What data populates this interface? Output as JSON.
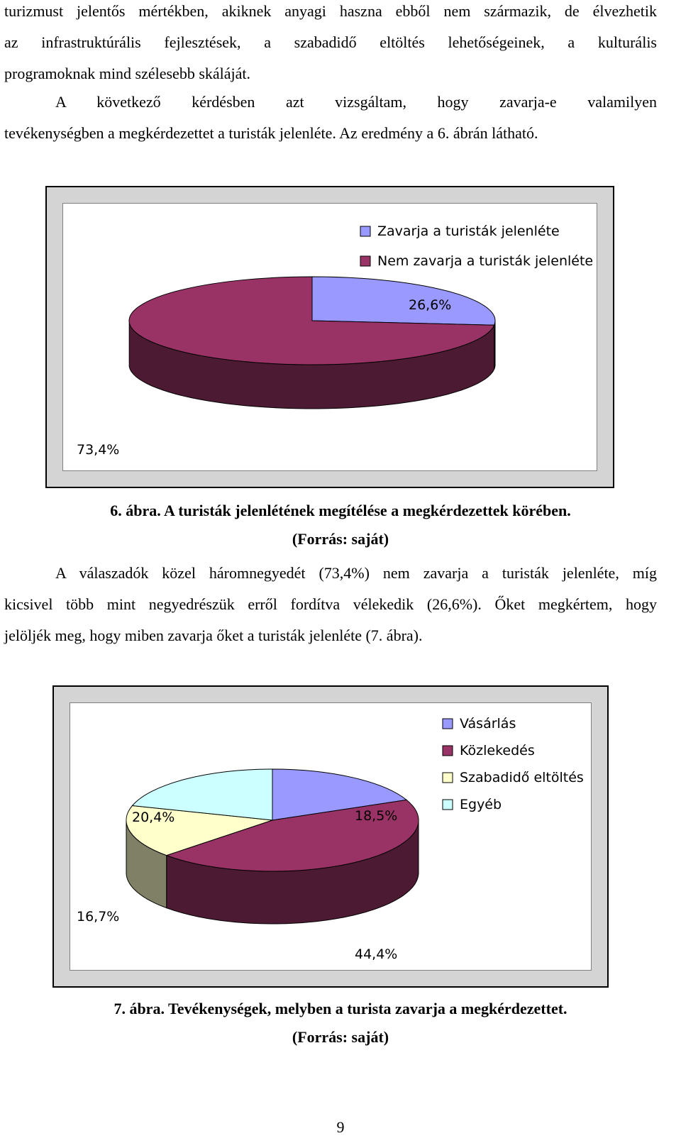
{
  "intro_paragraph": {
    "lines": [
      "turizmust jelentős mértékben, akiknek anyagi haszna ebből nem származik, de élvezhetik",
      "az infrastruktúrális fejlesztések, a szabadidő eltöltés lehetőségeinek, a kulturális",
      "programoknak mind szélesebb skáláját."
    ]
  },
  "question_paragraph": {
    "lines": [
      "A következő kérdésben azt vizsgáltam, hogy zavarja-e valamilyen",
      "tevékenységben a megkérdezettet a turisták jelenléte. Az eredmény a 6. ábrán látható."
    ]
  },
  "figure6": {
    "caption_line1": "6. ábra. A turisták jelenlétének megítélése a megkérdezettek körében.",
    "caption_line2": "(Forrás: saját)"
  },
  "result_paragraph": {
    "lines": [
      "A válaszadók közel háromnegyedét (73,4%) nem zavarja a turisták jelenléte, míg",
      "kicsivel több mint negyedrészük erről fordítva vélekedik (26,6%). Őket megkértem, hogy",
      "jelöljék meg, hogy miben zavarja őket a turisták jelenléte (7. ábra)."
    ]
  },
  "figure7": {
    "caption_line1": "7. ábra. Tevékenységek, melyben a turista zavarja a megkérdezettet.",
    "caption_line2": "(Forrás: saját)"
  },
  "page_number": "9",
  "chart_data": [
    {
      "type": "pie",
      "style": "3d",
      "title": "",
      "legend_position": "top-right",
      "categories": [
        "Zavarja a turisták jelenléte",
        "Nem zavarja a turisták jelenléte"
      ],
      "values": [
        26.6,
        73.4
      ],
      "labels": [
        "26,6%",
        "73,4%"
      ],
      "colors": [
        "#9999ff",
        "#993366"
      ],
      "side_colors": [
        "#4d4d80",
        "#4d1a33"
      ]
    },
    {
      "type": "pie",
      "style": "3d",
      "title": "",
      "legend_position": "top-right",
      "categories": [
        "Vásárlás",
        "Közlekedés",
        "Szabadidő eltöltés",
        "Egyéb"
      ],
      "values": [
        18.5,
        44.4,
        16.7,
        20.4
      ],
      "labels": [
        "18,5%",
        "44,4%",
        "16,7%",
        "20,4%"
      ],
      "colors": [
        "#9999ff",
        "#993366",
        "#ffffcc",
        "#ccffff"
      ],
      "side_colors": [
        "#4d4d80",
        "#4d1a33",
        "#808066",
        "#668080"
      ]
    }
  ]
}
